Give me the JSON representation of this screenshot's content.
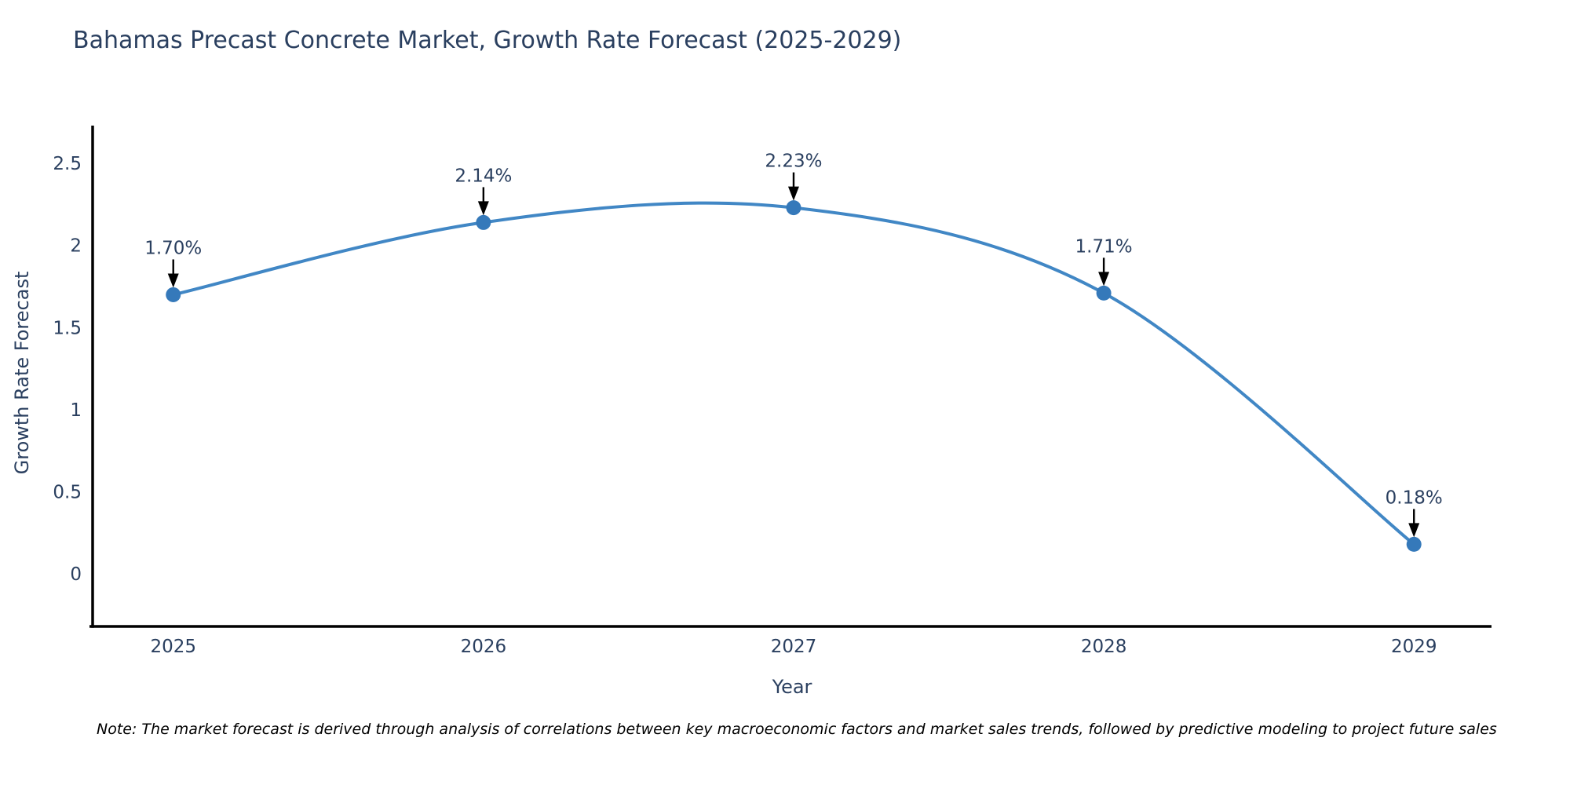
{
  "title": "Bahamas Precast Concrete Market, Growth Rate Forecast (2025-2029)",
  "note": "Note: The market forecast is derived through analysis of correlations between key macroeconomic factors and market sales trends, followed by predictive modeling to project future sales",
  "chart_data": {
    "type": "line",
    "title": "Bahamas Precast Concrete Market, Growth Rate Forecast (2025-2029)",
    "xlabel": "Year",
    "ylabel": "Growth Rate Forecast",
    "x": [
      2025,
      2026,
      2027,
      2028,
      2029
    ],
    "y": [
      1.7,
      2.14,
      2.23,
      1.71,
      0.18
    ],
    "point_labels": [
      "1.70%",
      "2.14%",
      "2.23%",
      "1.71%",
      "0.18%"
    ],
    "yticks": [
      0,
      0.5,
      1,
      1.5,
      2,
      2.5
    ],
    "xlim": [
      2024.74,
      2029.25
    ],
    "ylim": [
      -0.32,
      2.73
    ],
    "line_shape": "spline",
    "grid": false,
    "legend": "none",
    "colors": {
      "line": "#4187c5",
      "marker": "#3579ba",
      "axis": "#000000",
      "text": "#2a3f5f",
      "arrow": "#000000",
      "background": "#ffffff"
    }
  }
}
